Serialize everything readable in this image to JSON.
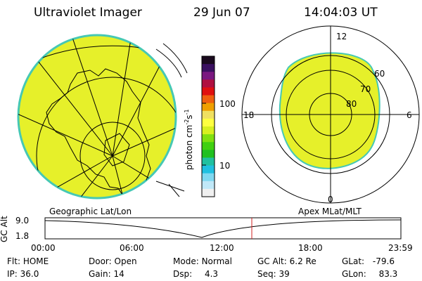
{
  "header": {
    "instrument": "Ultraviolet Imager",
    "date": "29 Jun 07",
    "time": "14:04:03 UT"
  },
  "colorbar": {
    "unit_label": "photon cm",
    "unit_exp1": "-2",
    "unit_s": "s",
    "unit_exp2": "-1",
    "ticks": [
      "100",
      "10"
    ],
    "colors": [
      "#1a0a1e",
      "#3a1060",
      "#7a1880",
      "#b01040",
      "#e01010",
      "#f06010",
      "#f0a000",
      "#f0e060",
      "#ffff40",
      "#d8f020",
      "#80e010",
      "#40d010",
      "#20c020",
      "#20c0a0",
      "#20c0e0",
      "#80d8f0",
      "#c0e8f8",
      "#f0f0f0"
    ]
  },
  "geo_panel": {
    "name": "Geographic Lat/Lon",
    "fill_color": "#e6f02a",
    "edge_color": "#46c8b4"
  },
  "polar_panel": {
    "name": "Apex MLat/MLT",
    "mlt_labels": {
      "top": "12",
      "left": "18",
      "right": "6",
      "bottom": "0"
    },
    "lat_labels": [
      "60",
      "70",
      "80"
    ],
    "fill_color": "#e6f02a"
  },
  "altitude_plot": {
    "y_label": "GC Alt",
    "y_ticks": [
      "9.0",
      "1.8"
    ],
    "x_ticks": [
      "00:00",
      "06:00",
      "12:00",
      "18:00",
      "23:59"
    ],
    "marker_color": "#d02020"
  },
  "footer": {
    "row1": [
      {
        "key": "Flt:",
        "val": "HOME"
      },
      {
        "key": "Door:",
        "val": "Open"
      },
      {
        "key": "Mode:",
        "val": "Normal"
      },
      {
        "key": "GC Alt:",
        "val": "6.2 Re"
      },
      {
        "key": "GLat:",
        "val": "-79.6"
      }
    ],
    "row2": [
      {
        "key": "IP:",
        "val": "36.0"
      },
      {
        "key": "Gain:",
        "val": "14"
      },
      {
        "key": "Dsp:",
        "val": "4.3"
      },
      {
        "key": "Seq:",
        "val": "39"
      },
      {
        "key": "GLon:",
        "val": "83.3"
      }
    ]
  }
}
